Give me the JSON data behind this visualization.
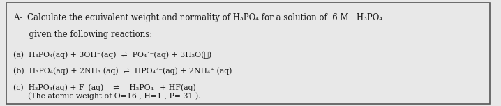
{
  "bg_color": "#e8e8e8",
  "text_color": "#1a1a1a",
  "border_color": "#555555",
  "title_line1": "A-  Calculate the equivalent weight and normality of H₃PO₄ for a solution of  6 M   H₃PO₄",
  "title_line2": "      given the following reactions:",
  "line_a": "(a)  H₃PO₄(aq) + 3OH⁻(aq)  ⇌  PO₄³⁻(aq) + 3H₂O(ℓ)",
  "line_b": "(b)  H₃PO₄(aq) + 2NH₃ (aq)  ⇌  HPO₄²⁻(aq) + 2NH₄⁺ (aq)",
  "line_c": "(c)  H₃PO₄(aq) + F⁻(aq)    ⇌    H₂PO₄⁻ + HF(aq)",
  "line_d": "      (The atomic weight of O=16 , H=1 , P= 31 ).",
  "figsize": [
    7.18,
    1.52
  ],
  "dpi": 100
}
